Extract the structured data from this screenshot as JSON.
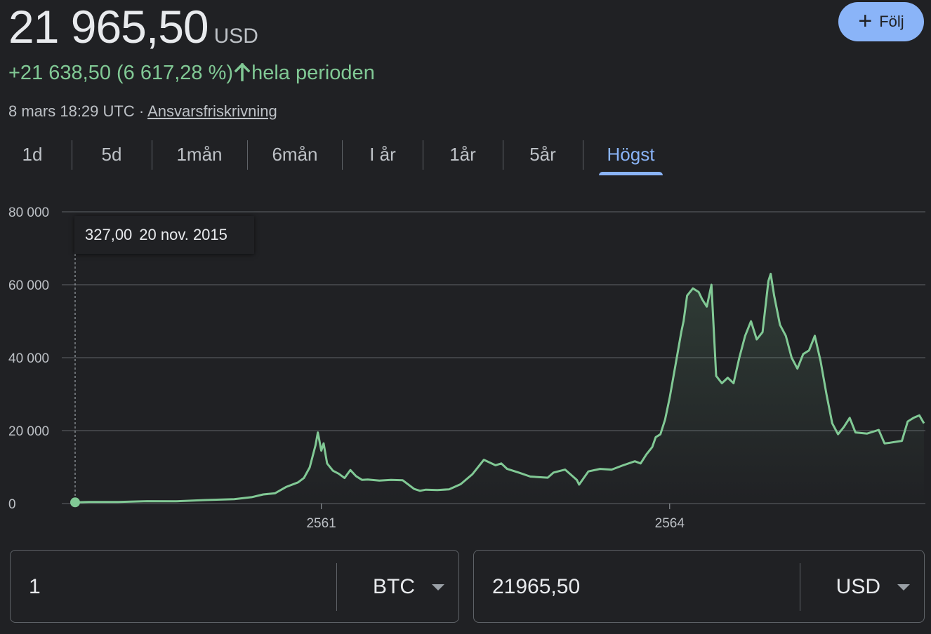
{
  "header": {
    "price": "21 965,50",
    "currency": "USD",
    "change_text": "+21 638,50 (6 617,28 %)",
    "change_period": "hela perioden",
    "timestamp": "8 mars 18:29 UTC ·",
    "disclaimer_link": "Ansvarsfriskrivning",
    "follow_label": "Följ",
    "accent_color": "#8ab4f8",
    "positive_color": "#81c995"
  },
  "tabs": [
    {
      "label": "1d"
    },
    {
      "label": "5d"
    },
    {
      "label": "1mån"
    },
    {
      "label": "6mån"
    },
    {
      "label": "I år"
    },
    {
      "label": "1år"
    },
    {
      "label": "5år"
    },
    {
      "label": "Högst",
      "active": true
    }
  ],
  "tooltip": {
    "value": "327,00",
    "date": "20 nov. 2015"
  },
  "chart_data": {
    "type": "area",
    "title": "",
    "xlabel": "",
    "ylabel": "",
    "y_ticks": [
      0,
      20000,
      40000,
      60000,
      80000
    ],
    "y_tick_labels": [
      "0",
      "20 000",
      "40 000",
      "60 000",
      "80 000"
    ],
    "ylim": [
      0,
      80000
    ],
    "xlim": [
      2015.88,
      2023.19
    ],
    "x_tick_values": [
      2018,
      2021
    ],
    "x_tick_labels": [
      "2561",
      "2564"
    ],
    "grid": true,
    "line_color": "#81c995",
    "x": [
      2015.88,
      2016.0,
      2016.25,
      2016.5,
      2016.75,
      2017.0,
      2017.25,
      2017.4,
      2017.5,
      2017.6,
      2017.7,
      2017.8,
      2017.85,
      2017.9,
      2017.95,
      2017.97,
      2018.0,
      2018.02,
      2018.05,
      2018.1,
      2018.15,
      2018.2,
      2018.25,
      2018.3,
      2018.35,
      2018.4,
      2018.5,
      2018.6,
      2018.7,
      2018.8,
      2018.85,
      2018.9,
      2019.0,
      2019.1,
      2019.2,
      2019.3,
      2019.4,
      2019.5,
      2019.55,
      2019.6,
      2019.7,
      2019.8,
      2019.9,
      2019.95,
      2020.0,
      2020.1,
      2020.2,
      2020.22,
      2020.3,
      2020.4,
      2020.5,
      2020.6,
      2020.7,
      2020.75,
      2020.8,
      2020.85,
      2020.88,
      2020.92,
      2020.96,
      2021.0,
      2021.05,
      2021.1,
      2021.12,
      2021.15,
      2021.2,
      2021.25,
      2021.28,
      2021.32,
      2021.36,
      2021.4,
      2021.45,
      2021.5,
      2021.55,
      2021.6,
      2021.65,
      2021.7,
      2021.75,
      2021.8,
      2021.85,
      2021.87,
      2021.9,
      2021.95,
      2022.0,
      2022.05,
      2022.1,
      2022.15,
      2022.2,
      2022.25,
      2022.3,
      2022.35,
      2022.4,
      2022.45,
      2022.5,
      2022.55,
      2022.6,
      2022.7,
      2022.8,
      2022.85,
      2022.9,
      2023.0,
      2023.05,
      2023.1,
      2023.15,
      2023.19
    ],
    "series": [
      {
        "values": [
          327,
          430,
          420,
          650,
          620,
          970,
          1200,
          1750,
          2500,
          2800,
          4600,
          5800,
          7000,
          9900,
          16000,
          19500,
          14500,
          16500,
          11000,
          9000,
          8200,
          7000,
          9200,
          7500,
          6500,
          6600,
          6300,
          6500,
          6400,
          4000,
          3500,
          3800,
          3700,
          3900,
          5300,
          8000,
          12000,
          10500,
          11000,
          9500,
          8500,
          7400,
          7200,
          7100,
          8500,
          9300,
          6500,
          5200,
          8800,
          9500,
          9300,
          10500,
          11600,
          11000,
          13500,
          15500,
          18200,
          19000,
          23000,
          29000,
          38000,
          47000,
          50000,
          57000,
          59000,
          58000,
          56000,
          54000,
          60000,
          35000,
          33000,
          34500,
          33000,
          40000,
          46000,
          50000,
          45000,
          47000,
          61000,
          63000,
          57000,
          49000,
          46000,
          40000,
          37000,
          41000,
          42000,
          46000,
          39000,
          30000,
          22000,
          19000,
          21000,
          23500,
          19500,
          19200,
          20200,
          16500,
          16700,
          17200,
          22500,
          23500,
          24200,
          22000
        ]
      }
    ],
    "markers": [
      {
        "x": 2015.88,
        "y": 327
      }
    ]
  },
  "converter": {
    "left": {
      "value": "1",
      "unit": "BTC"
    },
    "right": {
      "value": "21965,50",
      "unit": "USD"
    }
  }
}
